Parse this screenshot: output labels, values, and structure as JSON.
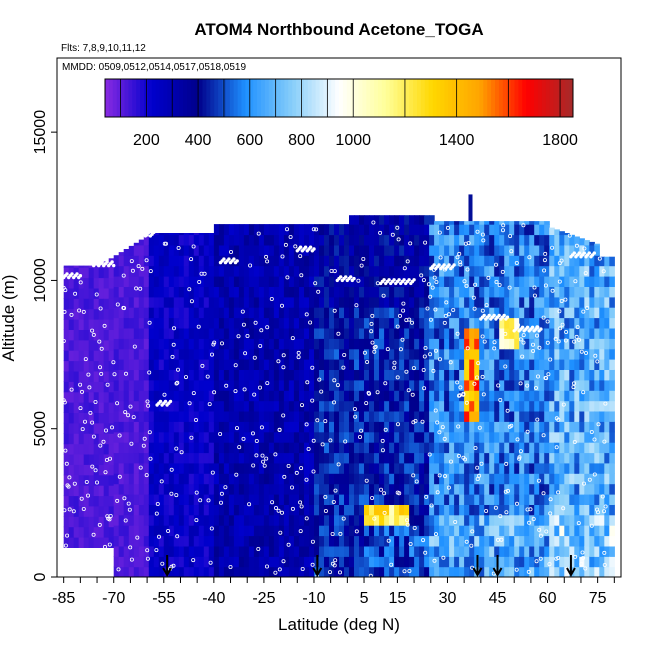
{
  "chart_data": {
    "type": "heatmap",
    "title": "ATOM4 Northbound Acetone_TOGA",
    "subtitle_flights": "Flts: 7,8,9,10,11,12",
    "subtitle_dates": "MMDD: 0509,0512,0514,0517,0518,0519",
    "xlabel": "Latitude (deg N)",
    "ylabel": "Altitude (m)",
    "xlim": [
      -87,
      82
    ],
    "ylim": [
      0,
      17500
    ],
    "x_ticks": [
      -85,
      -70,
      -55,
      -40,
      -25,
      -10,
      5,
      15,
      30,
      45,
      60,
      75
    ],
    "y_ticks": [
      0,
      5000,
      10000,
      15000
    ],
    "colorbar": {
      "range": [
        40,
        1850
      ],
      "ticks": [
        200,
        400,
        600,
        800,
        1000,
        1400,
        1800
      ],
      "colors": [
        "#8a2be2",
        "#0000cd",
        "#00008b",
        "#1e90ff",
        "#87cefa",
        "#ffffff",
        "#ffff99",
        "#ffd700",
        "#ffa500",
        "#ff0000",
        "#a52a2a"
      ]
    },
    "arrow_latitudes": [
      -54,
      -9,
      39,
      45,
      67
    ],
    "regions": [
      {
        "lat": [
          -85,
          -60
        ],
        "alt": [
          500,
          10500
        ],
        "value": 120
      },
      {
        "lat": [
          -60,
          -40
        ],
        "alt": [
          0,
          11500
        ],
        "value": 230
      },
      {
        "lat": [
          -40,
          -10
        ],
        "alt": [
          0,
          11900
        ],
        "value": 300
      },
      {
        "lat": [
          -10,
          25
        ],
        "alt": [
          0,
          12200
        ],
        "value": 420
      },
      {
        "lat": [
          25,
          60
        ],
        "alt": [
          0,
          12000
        ],
        "value": 560
      },
      {
        "lat": [
          60,
          80
        ],
        "alt": [
          0,
          10800
        ],
        "value": 650
      },
      {
        "lat": [
          35,
          39
        ],
        "alt": [
          5200,
          8500
        ],
        "value": 1500
      },
      {
        "lat": [
          5,
          18
        ],
        "alt": [
          1800,
          2600
        ],
        "value": 1200
      },
      {
        "lat": [
          45,
          52
        ],
        "alt": [
          7800,
          8800
        ],
        "value": 1100
      }
    ]
  }
}
